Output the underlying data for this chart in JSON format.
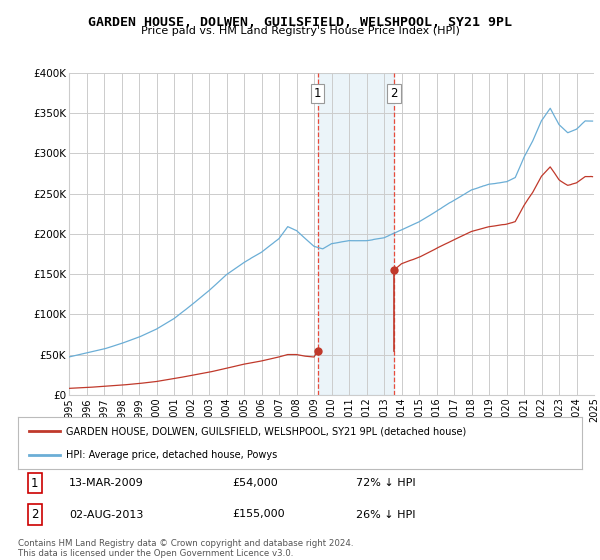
{
  "title": "GARDEN HOUSE, DOLWEN, GUILSFIELD, WELSHPOOL, SY21 9PL",
  "subtitle": "Price paid vs. HM Land Registry's House Price Index (HPI)",
  "hpi_label": "HPI: Average price, detached house, Powys",
  "house_label": "GARDEN HOUSE, DOLWEN, GUILSFIELD, WELSHPOOL, SY21 9PL (detached house)",
  "sale1_date": "13-MAR-2009",
  "sale1_price": 54000,
  "sale1_pct": "72% ↓ HPI",
  "sale2_date": "02-AUG-2013",
  "sale2_price": 155000,
  "sale2_pct": "26% ↓ HPI",
  "footer": "Contains HM Land Registry data © Crown copyright and database right 2024.\nThis data is licensed under the Open Government Licence v3.0.",
  "hpi_color": "#6baed6",
  "house_color": "#c0392b",
  "dashed_color": "#e74c3c",
  "background_color": "#ffffff",
  "grid_color": "#cccccc",
  "ylim": [
    0,
    400000
  ],
  "yticks": [
    0,
    50000,
    100000,
    150000,
    200000,
    250000,
    300000,
    350000,
    400000
  ],
  "ytick_labels": [
    "£0",
    "£50K",
    "£100K",
    "£150K",
    "£200K",
    "£250K",
    "£300K",
    "£350K",
    "£400K"
  ],
  "sale1_year": 2009.2,
  "sale2_year": 2013.58,
  "shade_start": 2009.2,
  "shade_end": 2013.58,
  "xtick_years": [
    1995,
    1996,
    1997,
    1998,
    1999,
    2000,
    2001,
    2002,
    2003,
    2004,
    2005,
    2006,
    2007,
    2008,
    2009,
    2010,
    2011,
    2012,
    2013,
    2014,
    2015,
    2016,
    2017,
    2018,
    2019,
    2020,
    2021,
    2022,
    2023,
    2024,
    2025
  ],
  "xlim": [
    1995,
    2025
  ]
}
